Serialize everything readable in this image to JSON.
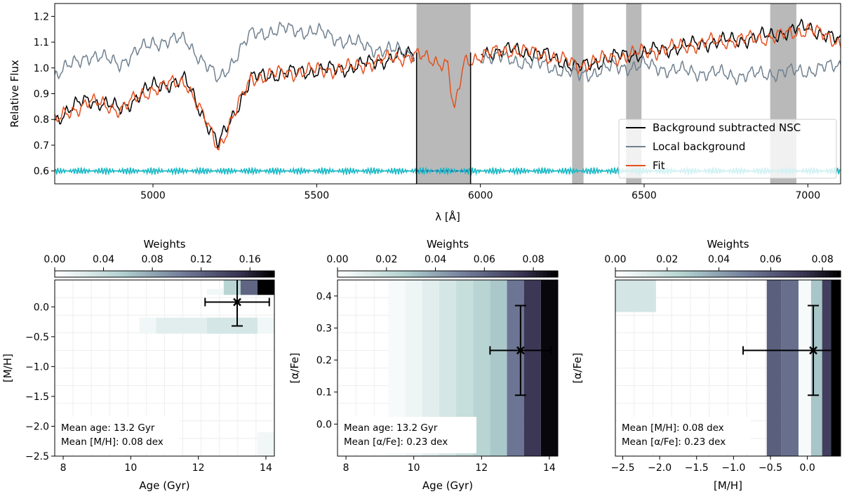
{
  "chart_data": [
    {
      "type": "line",
      "xlabel": "λ [Å]",
      "ylabel": "Relative Flux",
      "xlim": [
        4700,
        7100
      ],
      "ylim": [
        0.55,
        1.25
      ],
      "xticks": [
        5000,
        5500,
        6000,
        6500,
        7000
      ],
      "yticks": [
        0.6,
        0.7,
        0.8,
        0.9,
        1.0,
        1.1,
        1.2
      ],
      "masked_regions": [
        [
          5805,
          5970
        ],
        [
          6280,
          6315
        ],
        [
          6445,
          6492
        ],
        [
          6885,
          6965
        ]
      ],
      "series": [
        {
          "name": "Background subtracted NSC",
          "color": "#000000",
          "x": [
            4700,
            4800,
            4900,
            5000,
            5100,
            5200,
            5300,
            5400,
            5500,
            5600,
            5700,
            5800,
            5900,
            6000,
            6100,
            6200,
            6300,
            6400,
            6500,
            6600,
            6700,
            6800,
            6900,
            7000,
            7100
          ],
          "y": [
            0.8,
            0.88,
            0.84,
            0.93,
            0.95,
            0.7,
            0.96,
            0.98,
            0.99,
            1.0,
            1.03,
            1.06,
            null,
            1.06,
            1.07,
            1.05,
            1.0,
            1.04,
            1.06,
            1.08,
            1.1,
            1.11,
            1.13,
            1.16,
            1.1
          ]
        },
        {
          "name": "Local background",
          "color": "#708090",
          "x": [
            4700,
            4800,
            4900,
            5000,
            5100,
            5200,
            5300,
            5400,
            5500,
            5600,
            5700,
            5800,
            5900,
            6000,
            6100,
            6200,
            6300,
            6400,
            6500,
            6600,
            6700,
            6800,
            6900,
            7000,
            7100
          ],
          "y": [
            0.97,
            1.05,
            1.02,
            1.1,
            1.11,
            0.95,
            1.13,
            1.15,
            1.14,
            1.1,
            1.07,
            1.06,
            null,
            1.05,
            1.03,
            1.01,
            0.97,
            1.0,
            1.01,
            0.99,
            0.98,
            0.97,
            0.98,
            0.99,
            1.01
          ]
        },
        {
          "name": "Fit",
          "color": "#e5501e",
          "x": [
            4700,
            4800,
            4900,
            5000,
            5100,
            5200,
            5300,
            5400,
            5500,
            5600,
            5700,
            5800,
            5850,
            5900,
            5920,
            5950,
            6000,
            6100,
            6200,
            6300,
            6400,
            6500,
            6600,
            6700,
            6800,
            6900,
            7000,
            7100
          ],
          "y": [
            0.79,
            0.87,
            0.84,
            0.92,
            0.95,
            0.69,
            0.96,
            0.98,
            0.99,
            1.0,
            1.03,
            1.05,
            1.03,
            1.02,
            0.82,
            1.02,
            1.05,
            1.07,
            1.05,
            1.01,
            1.04,
            1.06,
            1.08,
            1.1,
            1.11,
            1.12,
            1.15,
            1.1
          ]
        },
        {
          "name": "",
          "color": "#17b8c4",
          "x": [
            4700,
            5100,
            5500,
            5805,
            5970,
            6400,
            6800,
            7100
          ],
          "y": [
            0.6,
            0.6,
            0.6,
            0.6,
            0.6,
            0.6,
            0.6,
            0.6
          ]
        }
      ],
      "legend": [
        "Background subtracted NSC",
        "Local background",
        "Fit"
      ],
      "legend_position": "lower-right"
    },
    {
      "type": "heatmap",
      "xlabel": "Age (Gyr)",
      "ylabel": "[M/H]",
      "xlim": [
        7.75,
        14.25
      ],
      "ylim": [
        -2.5,
        0.45
      ],
      "xticks": [
        8,
        10,
        12,
        14
      ],
      "yticks": [
        -2.5,
        -2.0,
        -1.5,
        -1.0,
        -0.5,
        0.0
      ],
      "colorbar": {
        "label": "Weights",
        "ticks": [
          "0.00",
          "0.04",
          "0.08",
          "0.12",
          "0.16"
        ],
        "max": 0.18
      },
      "cells": [
        {
          "x0": 12.75,
          "x1": 13.25,
          "y0": 0.2,
          "y1": 0.45,
          "w": 0.05
        },
        {
          "x0": 13.25,
          "x1": 13.75,
          "y0": 0.2,
          "y1": 0.45,
          "w": 0.12
        },
        {
          "x0": 13.75,
          "x1": 14.25,
          "y0": 0.2,
          "y1": 0.45,
          "w": 0.18
        },
        {
          "x0": 12.25,
          "x1": 12.75,
          "y0": 0.2,
          "y1": 0.3,
          "w": 0.01
        },
        {
          "x0": 10.25,
          "x1": 10.75,
          "y0": -0.45,
          "y1": -0.18,
          "w": 0.01
        },
        {
          "x0": 10.75,
          "x1": 12.25,
          "y0": -0.45,
          "y1": -0.18,
          "w": 0.02
        },
        {
          "x0": 12.25,
          "x1": 13.75,
          "y0": -0.45,
          "y1": -0.18,
          "w": 0.03
        },
        {
          "x0": 13.75,
          "x1": 14.25,
          "y0": -0.45,
          "y1": -0.18,
          "w": 0.01
        },
        {
          "x0": 13.75,
          "x1": 14.25,
          "y0": -2.5,
          "y1": -2.1,
          "w": 0.01
        }
      ],
      "mean_point": {
        "x": 13.15,
        "y": 0.08,
        "xerr": 0.95,
        "yerr": 0.4
      },
      "annotation": [
        "Mean age: 13.2 Gyr",
        "Mean [M/H]: 0.08 dex"
      ]
    },
    {
      "type": "heatmap",
      "xlabel": "Age (Gyr)",
      "ylabel": "[α/Fe]",
      "xlim": [
        7.75,
        14.25
      ],
      "ylim": [
        -0.1,
        0.45
      ],
      "xticks": [
        8,
        10,
        12,
        14
      ],
      "yticks": [
        0.0,
        0.1,
        0.2,
        0.3,
        0.4
      ],
      "colorbar": {
        "label": "Weights",
        "ticks": [
          "0.00",
          "0.02",
          "0.04",
          "0.06",
          "0.08"
        ],
        "max": 0.09
      },
      "columns": [
        {
          "x0": 9.25,
          "x1": 9.75,
          "w": 0.003
        },
        {
          "x0": 9.75,
          "x1": 10.25,
          "w": 0.006
        },
        {
          "x0": 10.25,
          "x1": 10.75,
          "w": 0.01
        },
        {
          "x0": 10.75,
          "x1": 11.25,
          "w": 0.015
        },
        {
          "x0": 11.25,
          "x1": 11.75,
          "w": 0.02
        },
        {
          "x0": 11.75,
          "x1": 12.25,
          "w": 0.025
        },
        {
          "x0": 12.25,
          "x1": 12.75,
          "w": 0.03
        },
        {
          "x0": 12.75,
          "x1": 13.25,
          "w": 0.055
        },
        {
          "x0": 13.25,
          "x1": 13.75,
          "w": 0.075
        },
        {
          "x0": 13.75,
          "x1": 14.25,
          "w": 0.088
        }
      ],
      "mean_point": {
        "x": 13.15,
        "y": 0.23,
        "xerr": 0.9,
        "yerr": 0.14
      },
      "annotation": [
        "Mean age: 13.2 Gyr",
        " Mean [α/Fe]: 0.23 dex"
      ]
    },
    {
      "type": "heatmap",
      "xlabel": "[M/H]",
      "ylabel": "[α/Fe]",
      "xlim": [
        -2.6,
        0.45
      ],
      "ylim": [
        -0.1,
        0.45
      ],
      "xticks": [
        -2.5,
        -2.0,
        -1.5,
        -1.0,
        -0.5,
        0.0
      ],
      "colorbar": {
        "label": "Weights",
        "ticks": [
          "0.00",
          "0.02",
          "0.04",
          "0.06",
          "0.08"
        ],
        "max": 0.087
      },
      "cells": [
        {
          "x0": -2.6,
          "x1": -2.05,
          "y0": 0.35,
          "y1": 0.45,
          "w": 0.015
        },
        {
          "x0": -0.55,
          "x1": -0.35,
          "y0": -0.1,
          "y1": 0.45,
          "w": 0.06
        },
        {
          "x0": -0.35,
          "x1": -0.12,
          "y0": -0.1,
          "y1": 0.45,
          "w": 0.055
        },
        {
          "x0": -0.12,
          "x1": 0.05,
          "y0": -0.1,
          "y1": 0.45,
          "w": 0.003
        },
        {
          "x0": 0.05,
          "x1": 0.2,
          "y0": -0.1,
          "y1": 0.45,
          "w": 0.03
        },
        {
          "x0": 0.2,
          "x1": 0.32,
          "y0": -0.1,
          "y1": 0.45,
          "w": 0.07
        },
        {
          "x0": 0.32,
          "x1": 0.45,
          "y0": -0.1,
          "y1": 0.45,
          "w": 0.087
        }
      ],
      "mean_point": {
        "x": 0.08,
        "y": 0.23,
        "xerr": 0.95,
        "yerr": 0.14
      },
      "annotation": [
        "Mean [M/H]: 0.08 dex",
        "Mean [α/Fe]: 0.23 dex"
      ]
    }
  ]
}
